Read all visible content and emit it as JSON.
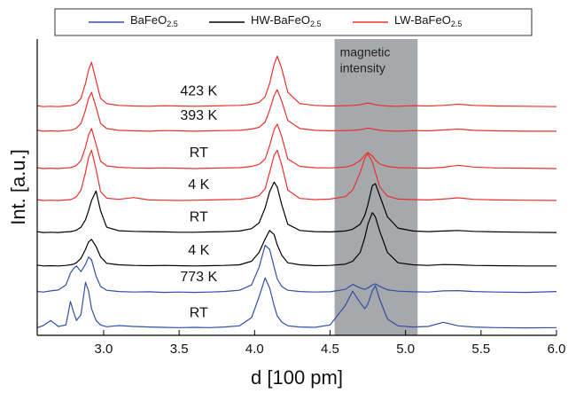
{
  "chart_data": {
    "type": "line",
    "x_label": "d [100 pm]",
    "y_label": "Int. [a.u.]",
    "xlim": [
      2.56,
      6.0
    ],
    "ylim": [
      0,
      100
    ],
    "xticks": [
      {
        "value": 3,
        "label": "3.0"
      },
      3.5,
      {
        "value": 4,
        "label": "4.0"
      },
      4.5,
      {
        "value": 5,
        "label": "5.0"
      },
      5.5,
      {
        "value": 6,
        "label": "6.0"
      }
    ],
    "shaded_region": {
      "x": [
        4.53,
        5.08
      ],
      "color": "#a6a8ab",
      "label": [
        "magnetic",
        "intensity"
      ]
    },
    "x": [
      2.56,
      2.6,
      2.65,
      2.7,
      2.75,
      2.78,
      2.8,
      2.82,
      2.85,
      2.88,
      2.9,
      2.92,
      2.95,
      2.98,
      3.02,
      3.1,
      3.2,
      3.3,
      3.4,
      3.5,
      3.6,
      3.7,
      3.8,
      3.9,
      3.98,
      4.03,
      4.07,
      4.1,
      4.13,
      4.15,
      4.18,
      4.22,
      4.3,
      4.4,
      4.5,
      4.6,
      4.65,
      4.7,
      4.73,
      4.75,
      4.78,
      4.8,
      4.83,
      4.88,
      4.95,
      5.05,
      5.15,
      5.25,
      5.35,
      5.45,
      5.6,
      5.8,
      6.0
    ],
    "series": [
      {
        "name": "BaFeO2.5",
        "color": "#2f4fa8",
        "traces": [
          {
            "label": "773 K",
            "values": [
              14.8,
              14.6,
              15,
              15.3,
              17,
              21,
              22.5,
              23.4,
              21.5,
              24,
              26.4,
              25.5,
              20,
              16.5,
              15.2,
              14.8,
              14.6,
              14.7,
              14.5,
              14.6,
              14.5,
              14.6,
              14.8,
              15.2,
              17,
              23,
              30.4,
              29,
              23,
              19,
              16.5,
              15.2,
              14.8,
              14.6,
              14.7,
              15.5,
              17.2,
              16,
              15.5,
              16,
              17,
              17.4,
              16.5,
              15.4,
              14.9,
              14.7,
              14.6,
              15,
              15.1,
              14.8,
              14.6,
              14.5,
              14.8
            ]
          },
          {
            "label": "RT",
            "values": [
              2.6,
              3.3,
              5,
              3,
              3.5,
              11.4,
              8,
              5,
              7,
              17.9,
              15,
              9,
              5,
              3.5,
              2.9,
              3.3,
              3,
              2.8,
              2.7,
              2.6,
              2.7,
              2.6,
              2.8,
              3.2,
              6,
              13,
              19.4,
              16,
              10,
              6.5,
              4.5,
              3.2,
              2.8,
              2.7,
              3.5,
              10,
              14.9,
              11,
              9,
              10.5,
              15,
              16.8,
              12,
              5.5,
              3.2,
              2.8,
              3,
              4.4,
              3.2,
              2.8,
              2.6,
              2.5,
              2.6
            ]
          }
        ]
      },
      {
        "name": "HW-BaFeO2.5",
        "color": "#000000",
        "traces": [
          {
            "label": "RT",
            "values": [
              35,
              34.7,
              34.8,
              34.7,
              34.9,
              35,
              35.2,
              35.5,
              36.5,
              39,
              42,
              45.5,
              48.7,
              42,
              36.5,
              35.3,
              35.1,
              35,
              34.9,
              34.8,
              34.8,
              34.9,
              35,
              35.2,
              36,
              38,
              43,
              48.5,
              51.7,
              50,
              44,
              37.5,
              35.4,
              35,
              34.9,
              35.2,
              35.8,
              37.5,
              40.5,
              44,
              50.5,
              51.2,
              47,
              40,
              36.2,
              35.2,
              35,
              35.2,
              35.4,
              35.1,
              34.9,
              34.8,
              34.7
            ]
          },
          {
            "label": "4 K",
            "values": [
              23.7,
              23.4,
              23.5,
              23.4,
              23.6,
              23.8,
              24,
              24.5,
              26,
              29,
              31.5,
              32.4,
              30,
              26.5,
              24.3,
              23.8,
              23.6,
              23.5,
              23.6,
              23.5,
              23.4,
              23.5,
              23.6,
              23.8,
              25,
              28,
              32.5,
              35.4,
              34,
              30.5,
              27,
              24.5,
              23.8,
              23.5,
              23.6,
              24,
              25,
              28,
              33,
              37.5,
              41.4,
              40,
              35,
              28,
              24.5,
              23.8,
              23.6,
              23.9,
              23.8,
              23.6,
              23.5,
              23.4,
              23.4
            ]
          }
        ]
      },
      {
        "name": "LW-BaFeO2.5",
        "color": "#e8322c",
        "traces": [
          {
            "label": "423 K",
            "values": [
              77.5,
              77.2,
              77.3,
              77.2,
              77.4,
              77.5,
              77.8,
              78.3,
              80,
              85,
              89.5,
              92.2,
              86,
              80,
              78.2,
              77.6,
              77.4,
              77.3,
              77.5,
              77.4,
              77.3,
              77.4,
              77.5,
              77.6,
              78,
              78.6,
              80.5,
              85,
              91.5,
              94.2,
              90,
              82,
              78.2,
              77.6,
              77.4,
              77.5,
              77.6,
              77.8,
              78.2,
              78.4,
              78.1,
              77.8,
              77.6,
              77.4,
              77.3,
              77.5,
              77.4,
              77.6,
              78,
              77.6,
              77.4,
              77.3,
              77.2
            ]
          },
          {
            "label": "393 K",
            "values": [
              69.2,
              68.9,
              69,
              68.9,
              69.1,
              69.2,
              69.5,
              70,
              71.5,
              76,
              80,
              82,
              77,
              71.5,
              69.8,
              69.2,
              69,
              68.9,
              69.1,
              69,
              68.9,
              69,
              69.1,
              69.2,
              69.6,
              70.2,
              72,
              76,
              81,
              82.9,
              79,
              72.5,
              69.8,
              69.2,
              69,
              69.1,
              69.2,
              69.4,
              69.7,
              69.9,
              69.7,
              69.5,
              69.2,
              69,
              68.9,
              69.1,
              69,
              69.3,
              69.6,
              69.2,
              69,
              68.9,
              68.9
            ]
          },
          {
            "label": "RT",
            "values": [
              56.6,
              56.3,
              56.4,
              56.3,
              56.5,
              56.6,
              56.9,
              57.4,
              59,
              63.5,
              67.5,
              69.8,
              64.5,
              58.8,
              57.2,
              56.7,
              56.5,
              56.4,
              56.5,
              56.4,
              56.3,
              56.4,
              56.5,
              56.6,
              57,
              57.7,
              59.5,
              64,
              69.5,
              71.3,
              67,
              59.5,
              57,
              56.6,
              56.5,
              56.8,
              57.4,
              59,
              60.8,
              61.7,
              60.5,
              59.2,
              57.8,
              57,
              56.6,
              56.5,
              56.4,
              56.7,
              57.4,
              56.8,
              56.5,
              56.4,
              56.3
            ]
          },
          {
            "label": "4 K",
            "values": [
              45.8,
              45.5,
              45.6,
              45.5,
              45.7,
              45.8,
              46.2,
              46.8,
              49,
              55,
              60,
              62.5,
              56,
              48.5,
              46.3,
              45.9,
              46.5,
              45.7,
              45.6,
              45.5,
              45.6,
              45.7,
              45.8,
              45.9,
              46.4,
              47.2,
              49.5,
              55,
              60.8,
              62.5,
              57.5,
              49,
              46.2,
              45.8,
              46,
              46.8,
              49,
              55,
              59.8,
              61.3,
              58.5,
              55,
              50,
              47,
              46,
              45.8,
              45.7,
              46,
              46.4,
              45.9,
              45.7,
              45.6,
              45.5
            ]
          }
        ]
      }
    ]
  }
}
